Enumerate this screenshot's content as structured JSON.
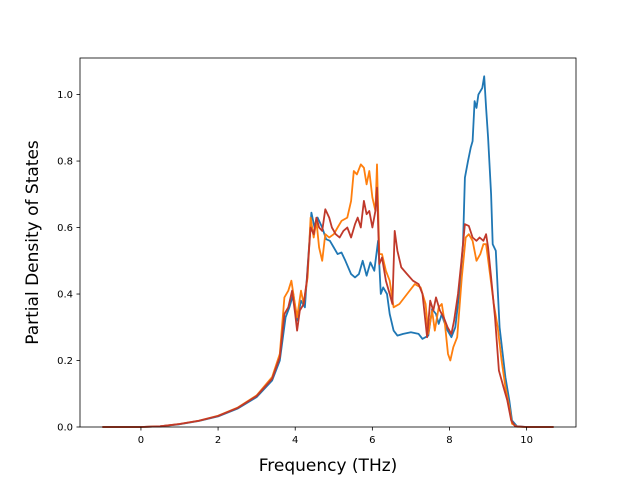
{
  "chart_data": {
    "type": "line",
    "title": "",
    "xlabel": "Frequency (THz)",
    "ylabel": "Partial Density of States",
    "xlim": [
      -1.58,
      11.28
    ],
    "ylim": [
      0.0,
      1.11
    ],
    "xticks": [
      0,
      2,
      4,
      6,
      8,
      10
    ],
    "yticks": [
      0.0,
      0.2,
      0.4,
      0.6,
      0.8,
      1.0
    ],
    "xtick_labels": [
      "0",
      "2",
      "4",
      "6",
      "8",
      "10"
    ],
    "ytick_labels": [
      "0.0",
      "0.2",
      "0.4",
      "0.6",
      "0.8",
      "1.0"
    ],
    "grid": false,
    "legend": "none",
    "series": [
      {
        "color": "#1f77b4",
        "points": [
          [
            -1.0,
            0.0
          ],
          [
            -0.5,
            0.0
          ],
          [
            0.0,
            0.0
          ],
          [
            0.5,
            0.002
          ],
          [
            1.0,
            0.008
          ],
          [
            1.5,
            0.018
          ],
          [
            2.0,
            0.032
          ],
          [
            2.5,
            0.055
          ],
          [
            3.0,
            0.09
          ],
          [
            3.4,
            0.14
          ],
          [
            3.6,
            0.2
          ],
          [
            3.75,
            0.33
          ],
          [
            3.85,
            0.36
          ],
          [
            3.95,
            0.4
          ],
          [
            4.05,
            0.32
          ],
          [
            4.15,
            0.38
          ],
          [
            4.25,
            0.36
          ],
          [
            4.32,
            0.48
          ],
          [
            4.42,
            0.645
          ],
          [
            4.5,
            0.6
          ],
          [
            4.58,
            0.63
          ],
          [
            4.7,
            0.6
          ],
          [
            4.8,
            0.565
          ],
          [
            4.9,
            0.56
          ],
          [
            5.0,
            0.54
          ],
          [
            5.1,
            0.52
          ],
          [
            5.2,
            0.525
          ],
          [
            5.3,
            0.5
          ],
          [
            5.45,
            0.46
          ],
          [
            5.55,
            0.45
          ],
          [
            5.65,
            0.46
          ],
          [
            5.75,
            0.5
          ],
          [
            5.85,
            0.455
          ],
          [
            5.95,
            0.495
          ],
          [
            6.05,
            0.47
          ],
          [
            6.15,
            0.56
          ],
          [
            6.22,
            0.4
          ],
          [
            6.28,
            0.42
          ],
          [
            6.38,
            0.4
          ],
          [
            6.45,
            0.34
          ],
          [
            6.55,
            0.29
          ],
          [
            6.65,
            0.275
          ],
          [
            6.8,
            0.28
          ],
          [
            7.0,
            0.285
          ],
          [
            7.2,
            0.28
          ],
          [
            7.3,
            0.265
          ],
          [
            7.45,
            0.275
          ],
          [
            7.55,
            0.355
          ],
          [
            7.65,
            0.34
          ],
          [
            7.72,
            0.31
          ],
          [
            7.8,
            0.34
          ],
          [
            7.85,
            0.32
          ],
          [
            7.95,
            0.29
          ],
          [
            8.05,
            0.27
          ],
          [
            8.15,
            0.3
          ],
          [
            8.25,
            0.4
          ],
          [
            8.35,
            0.55
          ],
          [
            8.4,
            0.75
          ],
          [
            8.48,
            0.8
          ],
          [
            8.55,
            0.84
          ],
          [
            8.6,
            0.86
          ],
          [
            8.65,
            0.98
          ],
          [
            8.7,
            0.96
          ],
          [
            8.75,
            1.0
          ],
          [
            8.85,
            1.02
          ],
          [
            8.9,
            1.055
          ],
          [
            8.95,
            0.96
          ],
          [
            9.0,
            0.87
          ],
          [
            9.08,
            0.7
          ],
          [
            9.12,
            0.55
          ],
          [
            9.2,
            0.53
          ],
          [
            9.3,
            0.3
          ],
          [
            9.45,
            0.15
          ],
          [
            9.55,
            0.08
          ],
          [
            9.62,
            0.02
          ],
          [
            9.75,
            0.002
          ],
          [
            10.0,
            0.0
          ],
          [
            10.7,
            0.0
          ]
        ]
      },
      {
        "color": "#ff7f0e",
        "points": [
          [
            -1.0,
            0.0
          ],
          [
            -0.5,
            0.0
          ],
          [
            0.0,
            0.0
          ],
          [
            0.5,
            0.002
          ],
          [
            1.0,
            0.009
          ],
          [
            1.5,
            0.019
          ],
          [
            2.0,
            0.034
          ],
          [
            2.5,
            0.058
          ],
          [
            3.0,
            0.095
          ],
          [
            3.4,
            0.15
          ],
          [
            3.6,
            0.22
          ],
          [
            3.72,
            0.39
          ],
          [
            3.82,
            0.41
          ],
          [
            3.9,
            0.44
          ],
          [
            3.98,
            0.38
          ],
          [
            4.05,
            0.33
          ],
          [
            4.15,
            0.41
          ],
          [
            4.22,
            0.37
          ],
          [
            4.32,
            0.45
          ],
          [
            4.4,
            0.63
          ],
          [
            4.48,
            0.57
          ],
          [
            4.55,
            0.62
          ],
          [
            4.62,
            0.54
          ],
          [
            4.7,
            0.5
          ],
          [
            4.78,
            0.58
          ],
          [
            4.88,
            0.57
          ],
          [
            5.0,
            0.58
          ],
          [
            5.1,
            0.6
          ],
          [
            5.2,
            0.62
          ],
          [
            5.35,
            0.63
          ],
          [
            5.45,
            0.68
          ],
          [
            5.52,
            0.77
          ],
          [
            5.6,
            0.76
          ],
          [
            5.7,
            0.79
          ],
          [
            5.78,
            0.78
          ],
          [
            5.85,
            0.73
          ],
          [
            5.92,
            0.77
          ],
          [
            6.0,
            0.69
          ],
          [
            6.08,
            0.65
          ],
          [
            6.12,
            0.79
          ],
          [
            6.18,
            0.52
          ],
          [
            6.25,
            0.52
          ],
          [
            6.35,
            0.47
          ],
          [
            6.45,
            0.44
          ],
          [
            6.55,
            0.36
          ],
          [
            6.7,
            0.37
          ],
          [
            6.9,
            0.4
          ],
          [
            7.1,
            0.43
          ],
          [
            7.25,
            0.42
          ],
          [
            7.38,
            0.37
          ],
          [
            7.45,
            0.28
          ],
          [
            7.55,
            0.35
          ],
          [
            7.62,
            0.29
          ],
          [
            7.72,
            0.36
          ],
          [
            7.8,
            0.37
          ],
          [
            7.88,
            0.31
          ],
          [
            7.96,
            0.22
          ],
          [
            8.02,
            0.2
          ],
          [
            8.1,
            0.24
          ],
          [
            8.2,
            0.27
          ],
          [
            8.32,
            0.45
          ],
          [
            8.42,
            0.57
          ],
          [
            8.5,
            0.58
          ],
          [
            8.6,
            0.56
          ],
          [
            8.7,
            0.5
          ],
          [
            8.8,
            0.52
          ],
          [
            8.88,
            0.55
          ],
          [
            8.95,
            0.55
          ],
          [
            9.05,
            0.46
          ],
          [
            9.15,
            0.37
          ],
          [
            9.25,
            0.3
          ],
          [
            9.35,
            0.2
          ],
          [
            9.45,
            0.12
          ],
          [
            9.55,
            0.06
          ],
          [
            9.62,
            0.01
          ],
          [
            9.75,
            0.001
          ],
          [
            10.0,
            0.0
          ],
          [
            10.7,
            0.0
          ]
        ]
      },
      {
        "color": "#c0392b",
        "points": [
          [
            -1.0,
            0.0
          ],
          [
            -0.5,
            0.0
          ],
          [
            0.0,
            0.0
          ],
          [
            0.5,
            0.002
          ],
          [
            1.0,
            0.009
          ],
          [
            1.5,
            0.019
          ],
          [
            2.0,
            0.033
          ],
          [
            2.5,
            0.057
          ],
          [
            3.0,
            0.093
          ],
          [
            3.4,
            0.145
          ],
          [
            3.6,
            0.21
          ],
          [
            3.72,
            0.34
          ],
          [
            3.82,
            0.36
          ],
          [
            3.92,
            0.41
          ],
          [
            4.0,
            0.34
          ],
          [
            4.05,
            0.29
          ],
          [
            4.12,
            0.35
          ],
          [
            4.22,
            0.37
          ],
          [
            4.3,
            0.44
          ],
          [
            4.4,
            0.6
          ],
          [
            4.48,
            0.58
          ],
          [
            4.55,
            0.63
          ],
          [
            4.62,
            0.6
          ],
          [
            4.7,
            0.59
          ],
          [
            4.78,
            0.655
          ],
          [
            4.88,
            0.63
          ],
          [
            4.95,
            0.6
          ],
          [
            5.05,
            0.58
          ],
          [
            5.15,
            0.57
          ],
          [
            5.25,
            0.59
          ],
          [
            5.35,
            0.6
          ],
          [
            5.45,
            0.57
          ],
          [
            5.55,
            0.61
          ],
          [
            5.62,
            0.63
          ],
          [
            5.7,
            0.6
          ],
          [
            5.78,
            0.68
          ],
          [
            5.85,
            0.64
          ],
          [
            5.92,
            0.65
          ],
          [
            6.0,
            0.6
          ],
          [
            6.08,
            0.65
          ],
          [
            6.12,
            0.72
          ],
          [
            6.18,
            0.49
          ],
          [
            6.25,
            0.51
          ],
          [
            6.35,
            0.44
          ],
          [
            6.45,
            0.4
          ],
          [
            6.52,
            0.37
          ],
          [
            6.58,
            0.59
          ],
          [
            6.65,
            0.53
          ],
          [
            6.75,
            0.48
          ],
          [
            6.9,
            0.46
          ],
          [
            7.05,
            0.44
          ],
          [
            7.2,
            0.43
          ],
          [
            7.3,
            0.4
          ],
          [
            7.42,
            0.27
          ],
          [
            7.5,
            0.38
          ],
          [
            7.58,
            0.35
          ],
          [
            7.65,
            0.39
          ],
          [
            7.75,
            0.35
          ],
          [
            7.85,
            0.33
          ],
          [
            7.95,
            0.3
          ],
          [
            8.05,
            0.28
          ],
          [
            8.12,
            0.32
          ],
          [
            8.22,
            0.4
          ],
          [
            8.3,
            0.49
          ],
          [
            8.4,
            0.61
          ],
          [
            8.5,
            0.605
          ],
          [
            8.6,
            0.57
          ],
          [
            8.7,
            0.56
          ],
          [
            8.78,
            0.57
          ],
          [
            8.88,
            0.56
          ],
          [
            8.95,
            0.58
          ],
          [
            9.0,
            0.54
          ],
          [
            9.08,
            0.45
          ],
          [
            9.18,
            0.33
          ],
          [
            9.28,
            0.17
          ],
          [
            9.4,
            0.12
          ],
          [
            9.5,
            0.08
          ],
          [
            9.6,
            0.02
          ],
          [
            9.7,
            0.002
          ],
          [
            10.0,
            0.0
          ],
          [
            10.7,
            0.0
          ]
        ]
      }
    ]
  }
}
